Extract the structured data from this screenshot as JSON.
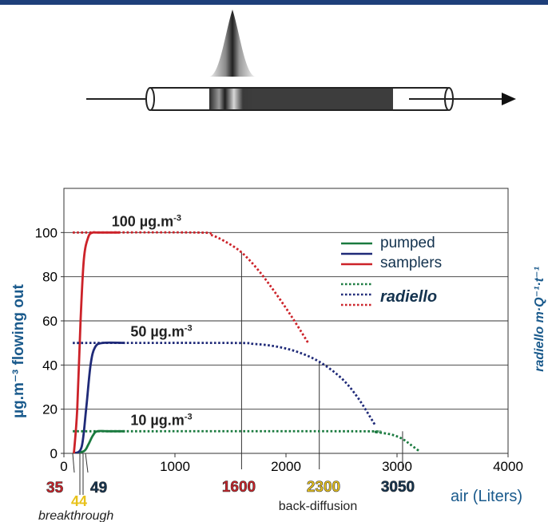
{
  "colors": {
    "top_bar": "#1e3f7a",
    "green": "#1a7a3f",
    "navy": "#1f2a78",
    "red": "#cc2229",
    "blue_text": "#1a5a8c",
    "navy_text": "#14334f",
    "yellow_text": "#e8c21a"
  },
  "chart_data": {
    "type": "line",
    "title": "",
    "xlabel": "air (Liters)",
    "ylabel": "µg.m⁻³ flowing out",
    "ylabel_right": "radiello m·Q⁻¹·t⁻¹",
    "xlim": [
      0,
      4000
    ],
    "ylim": [
      0,
      120
    ],
    "x_ticks": [
      0,
      1000,
      2000,
      3000,
      4000
    ],
    "x_tick_labels": [
      "0",
      "1000",
      "2000",
      "3000",
      "4000"
    ],
    "y_ticks": [
      0,
      20,
      40,
      60,
      80,
      100
    ],
    "y_tick_labels": [
      "0",
      "20",
      "40",
      "60",
      "80",
      "100"
    ],
    "grid": "horizontal",
    "legend": {
      "placement": "top-right",
      "pumped_label": "pumped",
      "samplers_label": "samplers",
      "radiello_label": "radiello"
    },
    "concentration_labels": [
      {
        "text": "100  µg.m",
        "sup": "-3",
        "at": [
          430,
          100
        ]
      },
      {
        "text": "50  µg.m",
        "sup": "-3",
        "at": [
          600,
          50
        ]
      },
      {
        "text": "10  µg.m",
        "sup": "-3",
        "at": [
          600,
          10
        ]
      }
    ],
    "series": [
      {
        "color": "green",
        "style": "solid",
        "x": [
          80,
          180,
          220,
          260,
          300,
          400,
          550
        ],
        "y": [
          0,
          1,
          4,
          8,
          10,
          10,
          10
        ]
      },
      {
        "color": "navy",
        "style": "solid",
        "x": [
          95,
          160,
          200,
          240,
          280,
          350,
          550
        ],
        "y": [
          0,
          3,
          20,
          40,
          48,
          50,
          50
        ]
      },
      {
        "color": "red",
        "style": "solid",
        "x": [
          90,
          120,
          150,
          180,
          220,
          260,
          300,
          500
        ],
        "y": [
          0,
          20,
          60,
          88,
          98,
          100,
          100,
          100
        ]
      },
      {
        "color": "green",
        "style": "dotted",
        "x": [
          80,
          2600,
          2800,
          2950,
          3050,
          3120,
          3200
        ],
        "y": [
          10,
          10,
          9.6,
          8.5,
          6.5,
          4,
          1
        ]
      },
      {
        "color": "navy",
        "style": "dotted",
        "x": [
          80,
          1500,
          1700,
          1900,
          2100,
          2300,
          2500,
          2650,
          2800
        ],
        "y": [
          50,
          50,
          49.6,
          48.5,
          46,
          41.5,
          34,
          25,
          13
        ]
      },
      {
        "color": "red",
        "style": "dotted",
        "x": [
          80,
          1200,
          1320,
          1450,
          1600,
          1750,
          1900,
          2050,
          2200
        ],
        "y": [
          100,
          100,
          99,
          96,
          91,
          83,
          73,
          62,
          50
        ]
      }
    ],
    "markers": [
      {
        "x": 1600,
        "y_top": 91
      },
      {
        "x": 2300,
        "y_top": 41
      },
      {
        "x": 3050,
        "y_top": 10
      }
    ],
    "bottom_labels": {
      "v35": "35",
      "v44": "44",
      "v49": "49",
      "v1600": "1600",
      "v2300": "2300",
      "v3050": "3050",
      "breakthrough": "breakthrough",
      "back_diffusion": "back-diffusion"
    }
  }
}
